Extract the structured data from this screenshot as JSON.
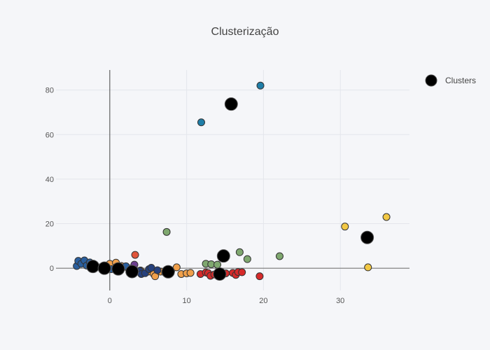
{
  "chart_data": {
    "type": "scatter",
    "title": "Clusterização",
    "xlabel": "",
    "ylabel": "",
    "xlim": [
      -7,
      39
    ],
    "ylim": [
      -10,
      89
    ],
    "xticks": [
      0,
      10,
      20,
      30
    ],
    "yticks": [
      0,
      20,
      40,
      60,
      80
    ],
    "grid": true,
    "legend": {
      "position": "top-right",
      "entries": [
        "Clusters"
      ]
    },
    "colors": {
      "green": "#7fa86f",
      "blue": "#1f7ea8",
      "yellow": "#f2c844",
      "red": "#d62a2a",
      "orange": "#f0a04b",
      "darkblue": "#26417d",
      "steelblue": "#2a5f9e",
      "tomato": "#e0553a",
      "purple": "#6c3f8f",
      "cluster": "#000000"
    },
    "series": [
      {
        "color": "green",
        "points": [
          [
            7.4,
            16.3
          ],
          [
            12.5,
            2
          ],
          [
            13.2,
            1.8
          ],
          [
            14,
            1.6
          ],
          [
            16.9,
            7.2
          ],
          [
            17.9,
            4.1
          ],
          [
            22.1,
            5.4
          ]
        ]
      },
      {
        "color": "blue",
        "points": [
          [
            11.9,
            65.5
          ],
          [
            19.6,
            82
          ]
        ]
      },
      {
        "color": "yellow",
        "points": [
          [
            30.6,
            18.7
          ],
          [
            33.6,
            0.4
          ],
          [
            36,
            23
          ]
        ]
      },
      {
        "color": "red",
        "points": [
          [
            11.8,
            -2.6
          ],
          [
            12.5,
            -1.9
          ],
          [
            12.8,
            -2.2
          ],
          [
            13.1,
            -3.4
          ],
          [
            13.6,
            -2.8
          ],
          [
            14.6,
            -2.9
          ],
          [
            15.1,
            -2.3
          ],
          [
            16,
            -2.1
          ],
          [
            16.4,
            -3
          ],
          [
            16.7,
            -1.7
          ],
          [
            17.2,
            -1.8
          ],
          [
            19.5,
            -3.6
          ]
        ]
      },
      {
        "color": "orange",
        "points": [
          [
            0,
            2
          ],
          [
            0.8,
            2.5
          ],
          [
            1.5,
            1
          ],
          [
            2.2,
            0.5
          ],
          [
            3,
            0.3
          ],
          [
            4,
            -1
          ],
          [
            5,
            -1.5
          ],
          [
            5.7,
            -2.5
          ],
          [
            5.9,
            -3.6
          ],
          [
            6.6,
            -1.5
          ],
          [
            7.2,
            -2
          ],
          [
            8,
            -1
          ],
          [
            8.7,
            0.4
          ],
          [
            9.3,
            -2.6
          ],
          [
            10,
            -2.3
          ],
          [
            10.5,
            -2.1
          ]
        ]
      },
      {
        "color": "darkblue",
        "points": [
          [
            2.6,
            -1
          ],
          [
            3.2,
            -0.6
          ],
          [
            3.9,
            -1.2
          ],
          [
            4.1,
            -2.6
          ],
          [
            4.6,
            -2.2
          ],
          [
            5.1,
            -0.4
          ],
          [
            5.4,
            0.2
          ],
          [
            6.2,
            -0.9
          ]
        ]
      },
      {
        "color": "steelblue",
        "points": [
          [
            -4.3,
            1
          ],
          [
            -4.1,
            3.3
          ],
          [
            -3.7,
            2
          ],
          [
            -3.3,
            3.5
          ],
          [
            -3,
            1.2
          ],
          [
            -2.6,
            2.6
          ],
          [
            -2.2,
            1.5
          ],
          [
            -1.8,
            0.8
          ],
          [
            -1.2,
            0.4
          ],
          [
            -0.6,
            0.2
          ],
          [
            0.2,
            -0.4
          ],
          [
            1.1,
            -0.5
          ],
          [
            2.1,
            0.9
          ],
          [
            3,
            -0.6
          ]
        ]
      },
      {
        "color": "tomato",
        "points": [
          [
            3.3,
            6
          ]
        ]
      },
      {
        "color": "purple",
        "points": [
          [
            3.2,
            1.6
          ]
        ]
      }
    ],
    "clusters": [
      [
        -2.2,
        0.8
      ],
      [
        -0.7,
        0
      ],
      [
        1.1,
        -0.3
      ],
      [
        2.9,
        -1.5
      ],
      [
        7.6,
        -1.6
      ],
      [
        14.3,
        -2.6
      ],
      [
        14.8,
        5.5
      ],
      [
        15.8,
        73.7
      ],
      [
        33.5,
        13.8
      ]
    ]
  }
}
